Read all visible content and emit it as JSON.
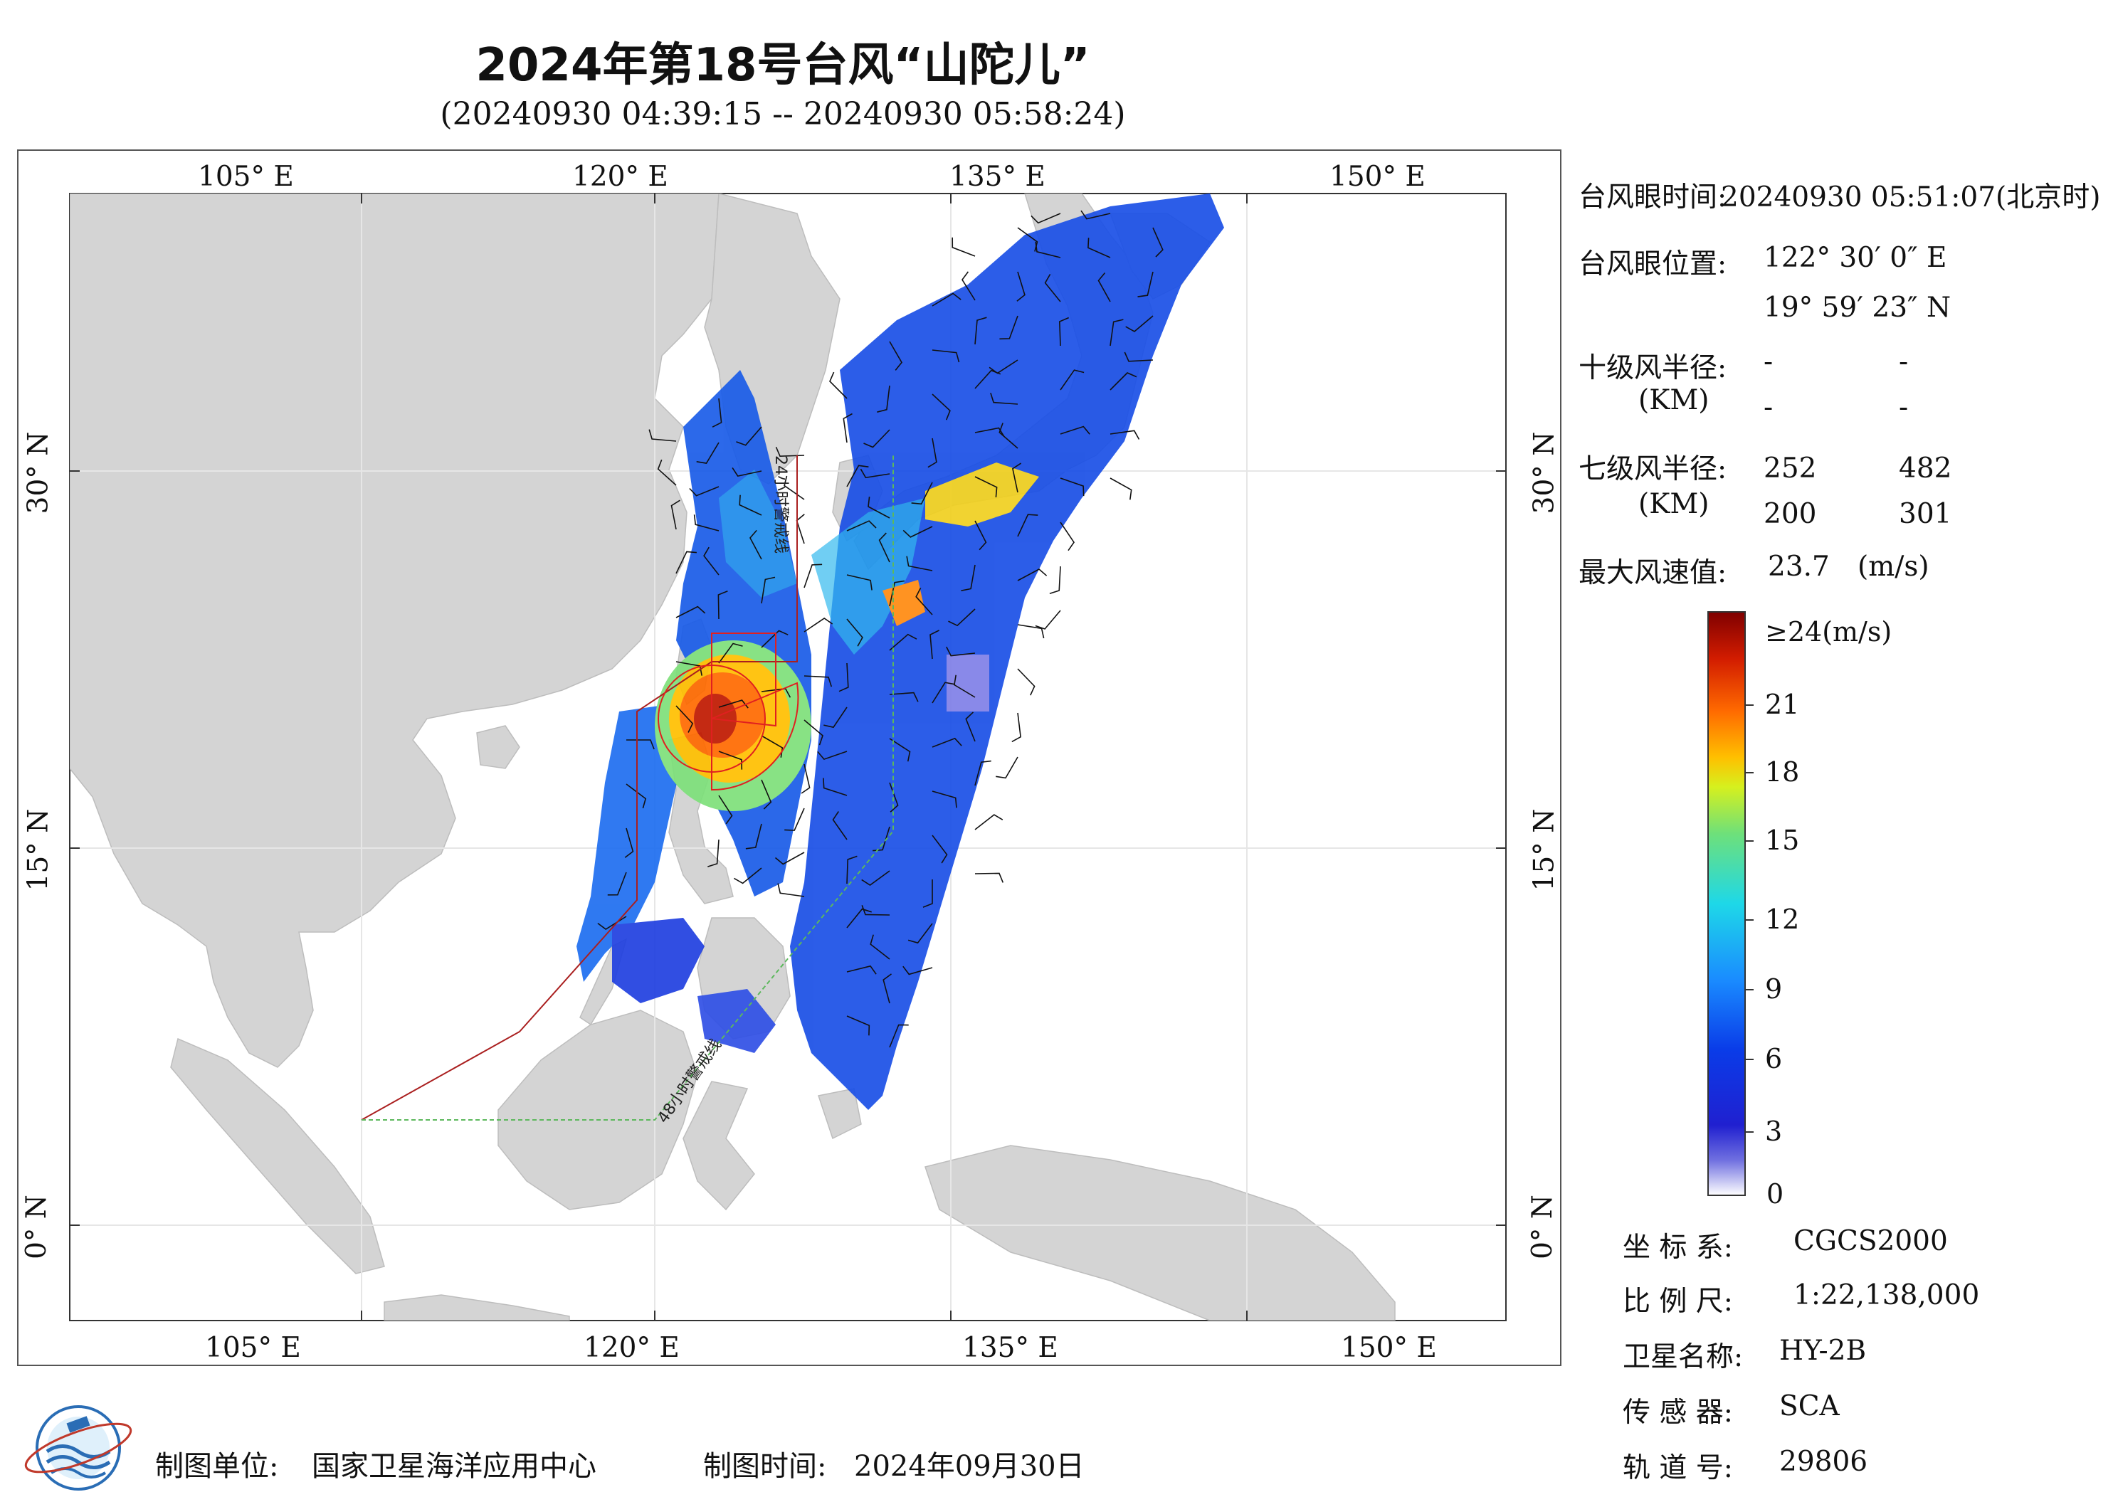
{
  "title": "2024年第18号台风“山陀儿”",
  "subtitle": "(20240930 04:39:15 -- 20240930 05:58:24)",
  "map": {
    "lon_labels": [
      "105° E",
      "120° E",
      "135° E",
      "150° E"
    ],
    "lat_labels": [
      "30° N",
      "15° N",
      "0° N"
    ],
    "warning_24h_label": "24小时警戒线",
    "warning_48h_label": "48小时警戒线",
    "colors": {
      "land": "#d4d4d4",
      "sea": "#ffffff",
      "warning_24h": "#aa1f1f",
      "warning_48h": "#5cb85c",
      "typhoon_circle": "#e02020"
    }
  },
  "info": {
    "eye_time_label": "台风眼时间:",
    "eye_time_value": "20240930 05:51:07(北京时)",
    "eye_pos_label": "台风眼位置:",
    "eye_lon": "122° 30′ 0″ E",
    "eye_lat": "19° 59′ 23″ N",
    "r10_label": "十级风半径:",
    "r10_unit": "(KM)",
    "r10_values": [
      "-",
      "-",
      "-",
      "-"
    ],
    "r7_label": "七级风半径:",
    "r7_unit": "(KM)",
    "r7_values": [
      "252",
      "482",
      "200",
      "301"
    ],
    "maxwind_label": "最大风速值:",
    "maxwind_value": "23.7",
    "maxwind_unit": "(m/s)"
  },
  "legend": {
    "max_label": "≥24(m/s)",
    "ticks": [
      "21",
      "18",
      "15",
      "12",
      "9",
      "6",
      "3",
      "0"
    ],
    "colors": [
      "#7f0000",
      "#d21c00",
      "#ff6a00",
      "#ffc000",
      "#d6f01e",
      "#6ee07a",
      "#1ed8e8",
      "#1a8cff",
      "#0a3ce8",
      "#2020d0",
      "#7070e0",
      "#ffffff"
    ]
  },
  "meta": {
    "coord_label": "坐 标 系:",
    "coord_value": "CGCS2000",
    "scale_label": "比 例 尺:",
    "scale_value": "1:22,138,000",
    "sat_label": "卫星名称:",
    "sat_value": "HY-2B",
    "sensor_label": "传 感 器:",
    "sensor_value": "SCA",
    "orbit_label": "轨 道 号:",
    "orbit_value": "29806"
  },
  "footer": {
    "unit_label": "制图单位:",
    "unit_value": "国家卫星海洋应用中心",
    "time_label": "制图时间:",
    "time_value": "2024年09月30日"
  }
}
